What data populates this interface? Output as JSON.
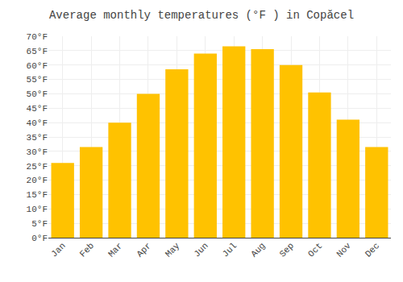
{
  "chart_data": {
    "type": "bar",
    "title": "Average monthly temperatures (°F ) in Copăcel",
    "categories": [
      "Jan",
      "Feb",
      "Mar",
      "Apr",
      "May",
      "Jun",
      "Jul",
      "Aug",
      "Sep",
      "Oct",
      "Nov",
      "Dec"
    ],
    "values": [
      26,
      31.5,
      40,
      50,
      58.5,
      64,
      66.5,
      65.5,
      60,
      50.5,
      41,
      31.5
    ],
    "color": "#FFC200",
    "ylim": [
      0,
      70
    ],
    "yticks": [
      {
        "value": 0,
        "label": "0°F"
      },
      {
        "value": 5,
        "label": "5°F"
      },
      {
        "value": 10,
        "label": "10°F"
      },
      {
        "value": 15,
        "label": "15°F"
      },
      {
        "value": 20,
        "label": "20°F"
      },
      {
        "value": 25,
        "label": "25°F"
      },
      {
        "value": 30,
        "label": "30°F"
      },
      {
        "value": 35,
        "label": "35°F"
      },
      {
        "value": 40,
        "label": "40°F"
      },
      {
        "value": 45,
        "label": "45°F"
      },
      {
        "value": 50,
        "label": "50°F"
      },
      {
        "value": 55,
        "label": "55°F"
      },
      {
        "value": 60,
        "label": "60°F"
      },
      {
        "value": 65,
        "label": "65°F"
      },
      {
        "value": 70,
        "label": "70°F"
      }
    ],
    "grid": true
  }
}
